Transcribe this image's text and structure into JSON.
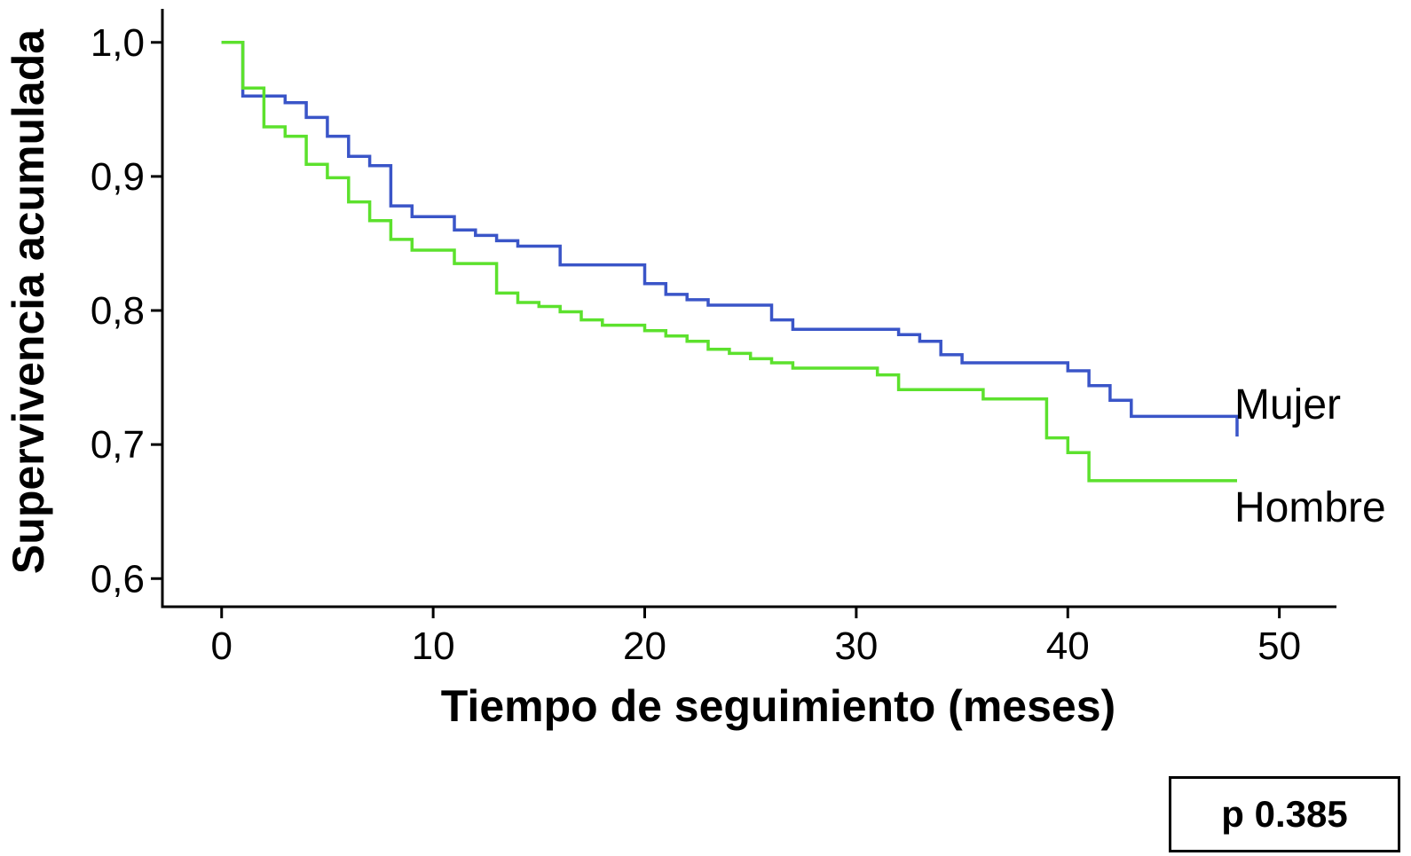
{
  "chart_data": {
    "type": "line",
    "step": true,
    "xlabel": "Tiempo de seguimiento (meses)",
    "ylabel": "Supervivencia acumulada",
    "xlim": [
      -2.8,
      52.7
    ],
    "ylim": [
      0.579,
      1.025
    ],
    "x_ticks": [
      0,
      10,
      20,
      30,
      40,
      50
    ],
    "x_tick_labels": [
      "0",
      "10",
      "20",
      "30",
      "40",
      "50"
    ],
    "y_ticks": [
      0.6,
      0.7,
      0.8,
      0.9,
      1.0
    ],
    "y_tick_labels": [
      "0,6",
      "0,7",
      "0,8",
      "0,9",
      "1,0"
    ],
    "grid": false,
    "legend": "none",
    "series": [
      {
        "name": "Mujer",
        "color": "#3a55c8",
        "x": [
          0,
          1,
          2,
          3,
          4,
          5,
          6,
          7,
          8,
          9,
          11,
          12,
          13,
          14,
          16,
          18,
          20,
          21,
          22,
          23,
          26,
          27,
          32,
          33,
          34,
          35,
          40,
          41,
          42,
          43,
          48
        ],
        "y": [
          1.0,
          0.96,
          0.96,
          0.955,
          0.944,
          0.93,
          0.915,
          0.908,
          0.878,
          0.87,
          0.86,
          0.856,
          0.852,
          0.848,
          0.834,
          0.834,
          0.82,
          0.812,
          0.808,
          0.804,
          0.793,
          0.786,
          0.782,
          0.777,
          0.767,
          0.761,
          0.755,
          0.744,
          0.733,
          0.721,
          0.706
        ]
      },
      {
        "name": "Hombre",
        "color": "#5ce12d",
        "x": [
          0,
          1,
          2,
          3,
          4,
          5,
          6,
          7,
          8,
          9,
          11,
          13,
          14,
          15,
          16,
          17,
          18,
          20,
          21,
          22,
          23,
          24,
          25,
          26,
          27,
          31,
          32,
          36,
          39,
          40,
          41,
          48
        ],
        "y": [
          1.0,
          0.966,
          0.937,
          0.93,
          0.909,
          0.899,
          0.881,
          0.867,
          0.853,
          0.845,
          0.835,
          0.813,
          0.806,
          0.803,
          0.799,
          0.793,
          0.789,
          0.785,
          0.781,
          0.777,
          0.771,
          0.768,
          0.764,
          0.761,
          0.757,
          0.752,
          0.741,
          0.734,
          0.705,
          0.694,
          0.673,
          0.673
        ]
      }
    ],
    "annotation": "p 0.385"
  }
}
